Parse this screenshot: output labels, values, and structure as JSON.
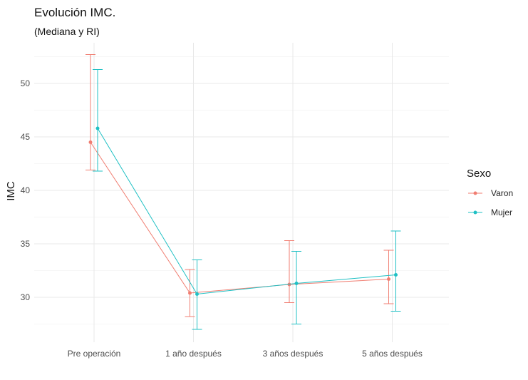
{
  "chart_data": {
    "type": "line",
    "title": "Evolución IMC.",
    "subtitle": "(Mediana y RI)",
    "xlabel": "",
    "ylabel": "IMC",
    "categories": [
      "Pre operación",
      "1 año después",
      "3 años después",
      "5 años después"
    ],
    "ylim": [
      25.8,
      53.8
    ],
    "yticks": [
      30,
      35,
      40,
      45,
      50
    ],
    "grid": true,
    "legend": {
      "title": "Sexo",
      "position": "right"
    },
    "series": [
      {
        "name": "Varon",
        "color": "#f07e72",
        "values": [
          44.5,
          30.4,
          31.2,
          31.7
        ],
        "lower": [
          41.9,
          28.2,
          29.5,
          29.4
        ],
        "upper": [
          52.7,
          32.6,
          35.3,
          34.4
        ]
      },
      {
        "name": "Mujer",
        "color": "#1fc0c4",
        "values": [
          45.8,
          30.3,
          31.3,
          32.1
        ],
        "lower": [
          41.8,
          27.0,
          27.5,
          28.7
        ],
        "upper": [
          51.3,
          33.5,
          34.3,
          36.2
        ]
      }
    ]
  }
}
